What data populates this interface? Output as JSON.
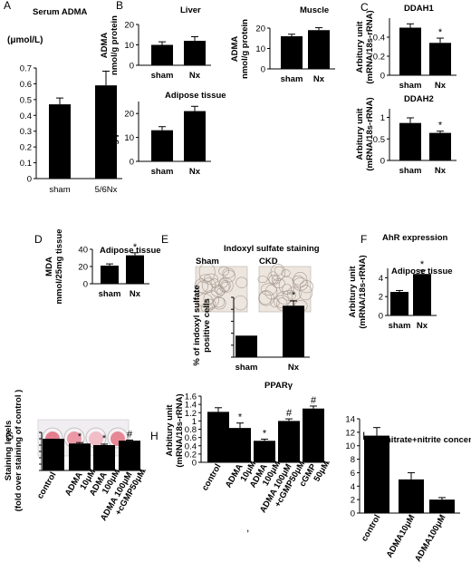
{
  "chart_data": [
    {
      "id": "A",
      "type": "bar",
      "panel_label": "A",
      "title": "Serum ADMA",
      "ylabel": "(μmol/L)",
      "categories": [
        "sham",
        "5/6Nx"
      ],
      "values": [
        0.47,
        0.59
      ],
      "errors": [
        0.04,
        0.09
      ],
      "ylim": [
        0,
        0.7
      ],
      "yticks": [
        "0",
        "0.1",
        "0.2",
        "0.3",
        "0.4",
        "0.5",
        "0.6",
        "0.7"
      ],
      "significance": [
        "",
        ""
      ]
    },
    {
      "id": "B1",
      "type": "bar",
      "panel_label": "B",
      "title": "Liver",
      "ylabel": [
        "ADMA",
        "nmol/g protein"
      ],
      "categories": [
        "sham",
        "Nx"
      ],
      "values": [
        10,
        12
      ],
      "errors": [
        1.5,
        2
      ],
      "ylim": [
        0,
        20
      ],
      "yticks": [
        "0",
        "10",
        "20"
      ],
      "significance": [
        "",
        ""
      ]
    },
    {
      "id": "B2",
      "type": "bar",
      "title": "Muscle",
      "ylabel": [
        "ADMA",
        "nmol/g protein"
      ],
      "categories": [
        "sham",
        "Nx"
      ],
      "values": [
        16,
        19
      ],
      "errors": [
        1,
        1.2
      ],
      "ylim": [
        0,
        20
      ],
      "yticks": [
        "0",
        "10",
        "20"
      ],
      "significance": [
        "",
        ""
      ]
    },
    {
      "id": "B3",
      "type": "bar",
      "title": "Adipose tissue",
      "ylabel": [
        "ADMA",
        "nmol/g protein"
      ],
      "categories": [
        "sham",
        "Nx"
      ],
      "values": [
        13,
        21
      ],
      "errors": [
        1.5,
        2
      ],
      "ylim": [
        0,
        25
      ],
      "yticks": [
        "0",
        "10",
        "20"
      ],
      "significance": [
        "",
        ""
      ]
    },
    {
      "id": "C1",
      "type": "bar",
      "panel_label": "C",
      "title": "DDAH1",
      "ylabel": [
        "Arbitury unit",
        "(mRNA/18s-rRNA)"
      ],
      "categories": [
        "sham",
        "Nx"
      ],
      "values": [
        0.5,
        0.34
      ],
      "errors": [
        0.04,
        0.05
      ],
      "ylim": [
        0,
        0.6
      ],
      "yticks": [
        "0",
        "0.2",
        "0.4"
      ],
      "significance": [
        "",
        "*"
      ]
    },
    {
      "id": "C2",
      "type": "bar",
      "title": "DDAH2",
      "ylabel": [
        "Arbitury unit",
        "(mRNA/18s-rRNA)"
      ],
      "categories": [
        "sham",
        "Nx"
      ],
      "values": [
        0.87,
        0.64
      ],
      "errors": [
        0.12,
        0.04
      ],
      "ylim": [
        0,
        1.2
      ],
      "yticks": [
        "0",
        "0.5",
        "1"
      ],
      "significance": [
        "",
        "*"
      ]
    },
    {
      "id": "D",
      "type": "bar",
      "panel_label": "D",
      "title": "Adipose tissue",
      "ylabel": [
        "MDA",
        "mmol/25mg tissue"
      ],
      "categories": [
        "sham",
        "Nx"
      ],
      "values": [
        21,
        33
      ],
      "errors": [
        2,
        3
      ],
      "ylim": [
        0,
        40
      ],
      "yticks": [
        "0",
        "20",
        "40"
      ],
      "significance": [
        "",
        "*"
      ]
    },
    {
      "id": "E",
      "type": "bar",
      "panel_label": "E",
      "title": "Indoxyl sulfate staining",
      "ylabel": [
        "% of indoxyl sulfate",
        "positive cells"
      ],
      "categories": [
        "sham",
        "Nx"
      ],
      "values": [
        18,
        43
      ],
      "errors": [
        0,
        4
      ],
      "ylim": [
        0,
        50
      ],
      "yticks": [
        "0",
        "10",
        "20",
        "30",
        "40",
        "50"
      ],
      "significance": [
        "",
        "*"
      ],
      "image_labels": [
        "Sham",
        "CKD"
      ]
    },
    {
      "id": "F",
      "type": "bar",
      "panel_label": "F",
      "title": "AhR expression",
      "subtitle": "Adipose tissue",
      "ylabel": [
        "Arbitury unit",
        "(mRNA/18s-rRNA)"
      ],
      "categories": [
        "sham",
        "Nx"
      ],
      "values": [
        2.5,
        4.4
      ],
      "errors": [
        0.15,
        0.4
      ],
      "ylim": [
        0,
        5
      ],
      "yticks": [
        "0",
        "2",
        "4"
      ],
      "significance": [
        "",
        "*"
      ]
    },
    {
      "id": "G",
      "type": "bar",
      "panel_label": "G",
      "ylabel": [
        "Staining levels",
        "(fold over staining of control )"
      ],
      "categories": [
        "control",
        "ADMA 10μM",
        "ADMA 100μM",
        "ADMA 100μM +cGMP50μM"
      ],
      "values": [
        1.0,
        0.85,
        0.8,
        0.94
      ],
      "errors": [
        0,
        0.03,
        0.03,
        0.02
      ],
      "ylim": [
        0,
        1.2
      ],
      "yticks": [
        "0",
        "0.2",
        "0.4",
        "0.6",
        "0.8",
        "1",
        "1.2"
      ],
      "significance": [
        "",
        "*",
        "*",
        "#"
      ]
    },
    {
      "id": "H",
      "type": "bar",
      "panel_label": "H",
      "title": "PPARγ",
      "ylabel": [
        "Arbitury unit",
        "(mRNA/18s-rRNA)"
      ],
      "categories": [
        "control",
        "ADMA 10μM",
        "ADMA 100μM",
        "ADMA 100μM +cGMP50μM",
        "cGMP 50μM"
      ],
      "values": [
        1.22,
        0.83,
        0.52,
        1.0,
        1.3
      ],
      "errors": [
        0.1,
        0.12,
        0.04,
        0.05,
        0.06
      ],
      "ylim": [
        0,
        1.6
      ],
      "yticks": [
        "0",
        "0.2",
        "0.4",
        "0.6",
        "0.8",
        "1",
        "1.2",
        "1.4",
        "1.6"
      ],
      "significance": [
        "",
        "*",
        "*",
        "#",
        "#"
      ]
    },
    {
      "id": "I",
      "type": "bar",
      "panel_label": "I",
      "title": "nitrate+nitrite concentration",
      "categories": [
        "control",
        "ADMA10μM",
        "ADMA100μM"
      ],
      "values": [
        11.5,
        5,
        2
      ],
      "errors": [
        1.2,
        1,
        0.3
      ],
      "ylim": [
        0,
        14
      ],
      "yticks": [
        "0",
        "2",
        "4",
        "6",
        "8",
        "10",
        "12",
        "14"
      ],
      "significance": [
        "",
        "",
        ""
      ]
    }
  ],
  "colors": {
    "bar": "#000000",
    "axis": "#000000",
    "tissue": "#ece6df",
    "well_plate": "#e8e6e8",
    "well_stain": "#e87c8a"
  },
  "separator": ","
}
